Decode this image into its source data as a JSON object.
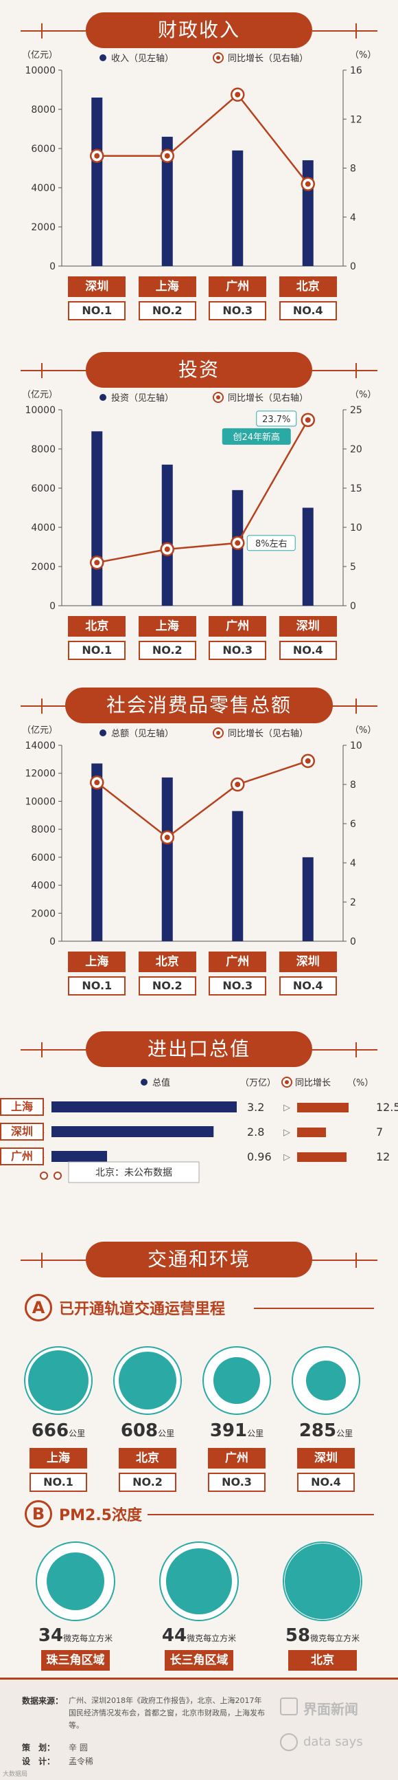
{
  "sections": {
    "fiscal": "财政收入",
    "investment": "投资",
    "retail": "社会消费品零售总额",
    "trade": "进出口总值",
    "transport": "交通和环境"
  },
  "chart_fiscal": {
    "type": "bar",
    "categories": [
      "深圳",
      "上海",
      "广州",
      "北京"
    ],
    "ranks": [
      "NO.1",
      "NO.2",
      "NO.3",
      "NO.4"
    ],
    "bar_legend": "收入（见左轴）",
    "line_legend": "同比增长（见右轴）",
    "left_unit": "（亿元）",
    "right_unit": "（%）",
    "ylim_left": [
      0,
      10000
    ],
    "ylim_right": [
      0,
      16
    ],
    "left_ticks": [
      "0",
      "2000",
      "4000",
      "6000",
      "8000",
      "10000"
    ],
    "right_ticks": [
      "0",
      "4",
      "8",
      "12",
      "16"
    ],
    "values": [
      8600,
      6600,
      5900,
      5400
    ],
    "growth": [
      9,
      9,
      14,
      6.7
    ]
  },
  "chart_investment": {
    "type": "bar",
    "categories": [
      "北京",
      "上海",
      "广州",
      "深圳"
    ],
    "ranks": [
      "NO.1",
      "NO.2",
      "NO.3",
      "NO.4"
    ],
    "bar_legend": "投资（见左轴）",
    "line_legend": "同比增长（见右轴）",
    "left_unit": "（亿元）",
    "right_unit": "（%）",
    "ylim_left": [
      0,
      10000
    ],
    "ylim_right": [
      0,
      25
    ],
    "left_ticks": [
      "0",
      "2000",
      "4000",
      "6000",
      "8000",
      "10000"
    ],
    "right_ticks": [
      "0",
      "5",
      "10",
      "15",
      "20",
      "25"
    ],
    "values": [
      8900,
      7200,
      5900,
      5000
    ],
    "growth": [
      5.5,
      7.2,
      8,
      23.7
    ],
    "annotations": {
      "top": "23.7%",
      "record": "创24年新高",
      "mid": "8%左右"
    }
  },
  "chart_retail": {
    "type": "bar",
    "categories": [
      "上海",
      "北京",
      "广州",
      "深圳"
    ],
    "ranks": [
      "NO.1",
      "NO.2",
      "NO.3",
      "NO.4"
    ],
    "bar_legend": "总额（见左轴）",
    "line_legend": "同比增长（见右轴）",
    "left_unit": "（亿元）",
    "right_unit": "（%）",
    "ylim_left": [
      0,
      14000
    ],
    "ylim_right": [
      0,
      10
    ],
    "left_ticks": [
      "0",
      "2000",
      "4000",
      "6000",
      "8000",
      "10000",
      "12000",
      "14000"
    ],
    "right_ticks": [
      "0",
      "2",
      "4",
      "6",
      "8",
      "10"
    ],
    "values": [
      12700,
      11700,
      9300,
      6000
    ],
    "growth": [
      8.1,
      5.3,
      8,
      9.2
    ]
  },
  "trade": {
    "total_legend": "总值",
    "total_unit": "（万亿）",
    "growth_legend": "同比增长",
    "growth_unit": "（%）",
    "rows": [
      {
        "city": "上海",
        "value": "3.2",
        "v": 3.2,
        "growth": "12.5",
        "g": 12.5
      },
      {
        "city": "深圳",
        "value": "2.8",
        "v": 2.8,
        "growth": "7",
        "g": 7
      },
      {
        "city": "广州",
        "value": "0.96",
        "v": 0.96,
        "growth": "12",
        "g": 12
      }
    ],
    "note": "北京：未公布数据"
  },
  "rail": {
    "letter": "A",
    "title": "已开通轨道交通运营里程",
    "items": [
      {
        "num": "666",
        "unit": "公里",
        "city": "上海",
        "rank": "NO.1",
        "v": 666
      },
      {
        "num": "608",
        "unit": "公里",
        "city": "北京",
        "rank": "NO.2",
        "v": 608
      },
      {
        "num": "391",
        "unit": "公里",
        "city": "广州",
        "rank": "NO.3",
        "v": 391
      },
      {
        "num": "285",
        "unit": "公里",
        "city": "深圳",
        "rank": "NO.4",
        "v": 285
      }
    ]
  },
  "pm": {
    "letter": "B",
    "title": "PM2.5浓度",
    "items": [
      {
        "num": "34",
        "unit": "微克每立方米",
        "region": "珠三角区域",
        "v": 34
      },
      {
        "num": "44",
        "unit": "微克每立方米",
        "region": "长三角区域",
        "v": 44
      },
      {
        "num": "58",
        "unit": "微克每立方米",
        "region": "北京",
        "v": 58
      }
    ]
  },
  "footer": {
    "source_label": "数据来源：",
    "source_text": "广州、深圳2018年《政府工作报告》，北京、上海2017年国民经济情况发布会，首都之窗，北京市财政局，上海发布等。",
    "planner_label": "策　划：",
    "planner": "辛 圆",
    "designer_label": "设　计：",
    "designer": "孟令稀",
    "brand": "界面新闻",
    "brand2": "data says",
    "corner": "大数据局"
  },
  "colors": {
    "accent": "#b7411d",
    "bar": "#1d2a6b",
    "circle": "#2aa9a5"
  }
}
